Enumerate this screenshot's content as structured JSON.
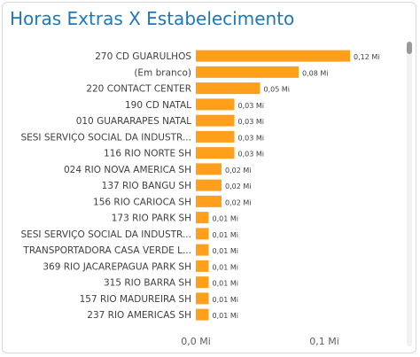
{
  "visual": {
    "title": "Horas Extras X Estabelecimento"
  },
  "colors": {
    "bar": "#ff9f1c",
    "title": "#1f78b4",
    "label": "#404040",
    "value_label": "#404040",
    "axis_text": "#606060"
  },
  "chart_data": {
    "type": "bar",
    "orientation": "horizontal",
    "title": "Horas Extras X Estabelecimento",
    "categories": [
      "270 CD GUARULHOS",
      "(Em branco)",
      "220 CONTACT CENTER",
      "190 CD NATAL",
      "010 GUARARAPES NATAL",
      "SESI SERVIÇO SOCIAL DA INDUSTR...",
      "116 RIO NORTE SH",
      "024 RIO NOVA AMERICA SH",
      "137 RIO BANGU SH",
      "156 RIO CARIOCA SH",
      "173 RIO PARK SH",
      "SESI SERVIÇO SOCIAL DA INDUSTR...",
      "TRANSPORTADORA CASA VERDE L...",
      "369 RIO JACAREPAGUA PARK SH",
      "315 RIO BARRA SH",
      "157 RIO MADUREIRA SH",
      "237 RIO AMERICAS SH"
    ],
    "values": [
      0.12,
      0.08,
      0.05,
      0.03,
      0.03,
      0.03,
      0.03,
      0.02,
      0.02,
      0.02,
      0.01,
      0.01,
      0.01,
      0.01,
      0.01,
      0.01,
      0.01
    ],
    "data_labels": [
      "0,12 Mi",
      "0,08 Mi",
      "0,05 Mi",
      "0,03 Mi",
      "0,03 Mi",
      "0,03 Mi",
      "0,03 Mi",
      "0,02 Mi",
      "0,02 Mi",
      "0,02 Mi",
      "0,01 Mi",
      "0,01 Mi",
      "0,01 Mi",
      "0,01 Mi",
      "0,01 Mi",
      "0,01 Mi",
      "0,01 Mi"
    ],
    "x_ticks": [
      0,
      0.1
    ],
    "x_tick_labels": [
      "0,0 Mi",
      "0,1 Mi"
    ],
    "xlim": [
      0,
      0.13
    ],
    "unit": "Mi",
    "grid": false,
    "legend": "none"
  }
}
